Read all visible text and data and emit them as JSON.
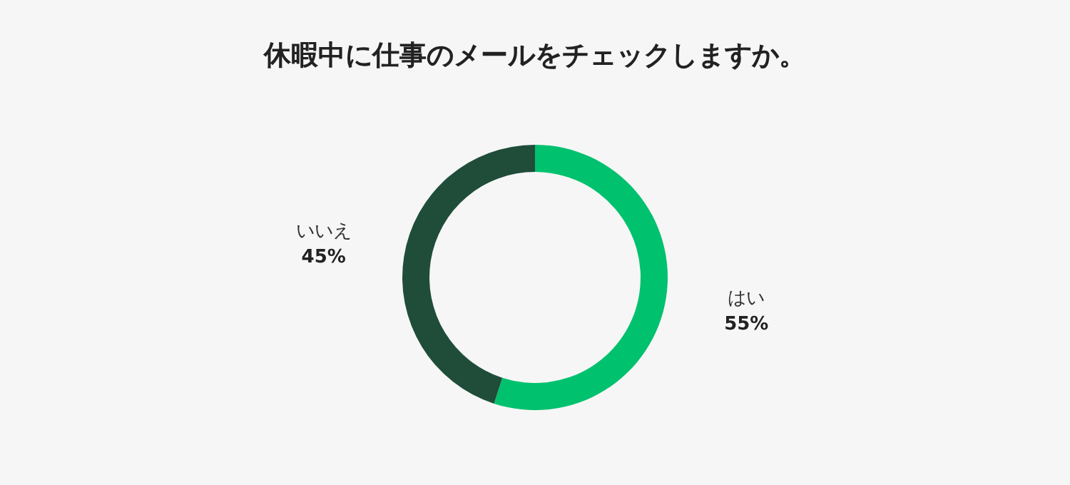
{
  "chart_data": {
    "type": "donut",
    "title": "休暇中に仕事のメールをチェックしますか。",
    "categories": [
      "はい",
      "いいえ"
    ],
    "values": [
      55,
      45
    ],
    "colors": [
      "#00c16e",
      "#1f4d3a"
    ],
    "value_labels": [
      "55%",
      "45%"
    ],
    "legend": false
  }
}
